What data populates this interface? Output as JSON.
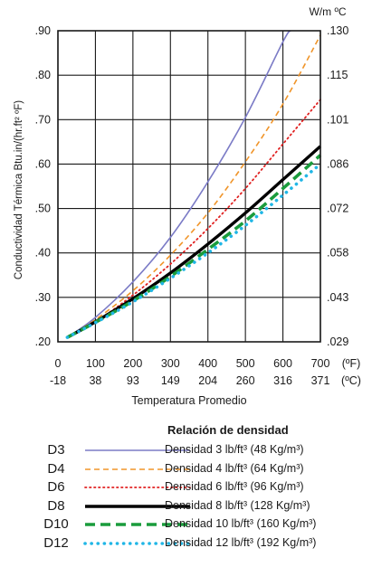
{
  "chart_data": {
    "type": "line",
    "title": "",
    "ylabel": "Conductividad Térmica Btu.in/(hr.ft² ºF)",
    "ylabel_right": "W/m ºC",
    "xlabel": "Temperatura Promedio",
    "xlim": [
      0,
      700
    ],
    "ylim": [
      0.2,
      0.9
    ],
    "grid": true,
    "x_ticks_f": [
      "0",
      "100",
      "200",
      "300",
      "400",
      "500",
      "600",
      "700"
    ],
    "x_ticks_c": [
      "-18",
      "38",
      "93",
      "149",
      "204",
      "260",
      "316",
      "371"
    ],
    "x_unit_f": "(ºF)",
    "x_unit_c": "(ºC)",
    "y_ticks_left": [
      ".20",
      ".30",
      ".40",
      ".50",
      ".60",
      ".70",
      ".80",
      ".90"
    ],
    "y_ticks_right": [
      ".029",
      ".043",
      ".058",
      ".072",
      ".086",
      ".101",
      ".115",
      ".130"
    ],
    "legend_title": "Relación de densidad",
    "legend_position": "bottom",
    "x": [
      25,
      100,
      200,
      300,
      400,
      500,
      600,
      700
    ],
    "series": [
      {
        "code": "D3",
        "name": "Densidad 3 lb/ft³ (48 Kg/m³)",
        "color": "#7b7bc6",
        "style": "solid",
        "values": [
          0.21,
          0.255,
          0.335,
          0.435,
          0.56,
          0.705,
          0.875,
          null
        ],
        "x_end": 620,
        "y_end": 0.9
      },
      {
        "code": "D4",
        "name": "Densidad 4 lb/ft³ (64 Kg/m³)",
        "color": "#f0952a",
        "style": "dashed",
        "values": [
          0.21,
          0.25,
          0.315,
          0.395,
          0.49,
          0.605,
          0.735,
          0.89
        ]
      },
      {
        "code": "D6",
        "name": "Densidad 6 lb/ft³ (96 Kg/m³)",
        "color": "#e02020",
        "style": "dotted",
        "values": [
          0.21,
          0.245,
          0.305,
          0.375,
          0.455,
          0.545,
          0.645,
          0.745
        ]
      },
      {
        "code": "D8",
        "name": "Densidad 8 lb/ft³ (128 Kg/m³)",
        "color": "#000000",
        "style": "solid-thick",
        "values": [
          0.21,
          0.245,
          0.297,
          0.355,
          0.42,
          0.49,
          0.565,
          0.64
        ]
      },
      {
        "code": "D10",
        "name": "Densidad 10 lb/ft³ (160 Kg/m³)",
        "color": "#1a9c3c",
        "style": "dashed-thick",
        "values": [
          0.21,
          0.244,
          0.292,
          0.347,
          0.408,
          0.472,
          0.545,
          0.62
        ]
      },
      {
        "code": "D12",
        "name": "Densidad 12 lb/ft³ (192 Kg/m³)",
        "color": "#20b6e6",
        "style": "dotted-thick",
        "values": [
          0.21,
          0.243,
          0.29,
          0.343,
          0.4,
          0.462,
          0.53,
          0.6
        ]
      }
    ]
  }
}
